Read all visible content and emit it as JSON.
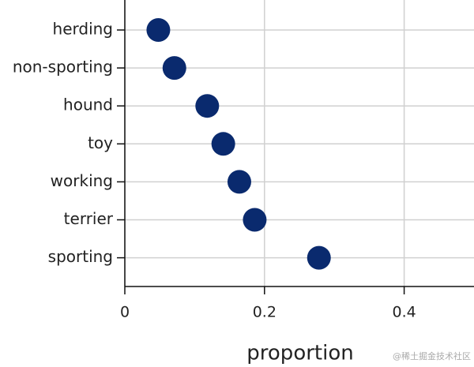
{
  "chart_data": {
    "type": "dot",
    "categories": [
      "herding",
      "non-sporting",
      "hound",
      "toy",
      "working",
      "terrier",
      "sporting"
    ],
    "values": [
      0.048,
      0.071,
      0.118,
      0.141,
      0.164,
      0.186,
      0.278
    ],
    "color": "#0a2a6e",
    "x_label": "proportion",
    "xlim": [
      0,
      0.5
    ],
    "xticks": [
      0,
      0.2,
      0.4
    ],
    "grid": true
  },
  "watermark": "@稀土掘金技术社区"
}
